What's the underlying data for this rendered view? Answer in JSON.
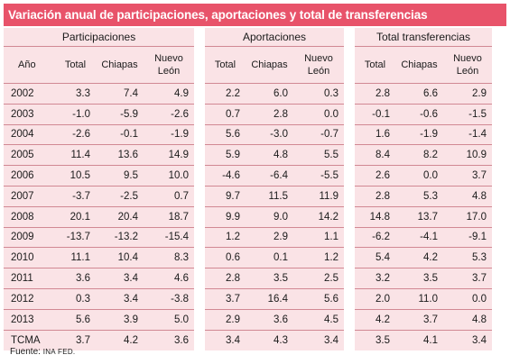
{
  "title": "Variación anual de participaciones, aportaciones y total de transferencias",
  "groups": [
    "Participaciones",
    "Aportaciones",
    "Total transferencias"
  ],
  "columns": {
    "year": "Año",
    "total": "Total",
    "chiapas": "Chiapas",
    "nuevo_leon": "Nuevo León"
  },
  "rows": [
    {
      "label": "2002",
      "values": [
        "3.3",
        "7.4",
        "4.9",
        "2.2",
        "6.0",
        "0.3",
        "2.8",
        "6.6",
        "2.9"
      ]
    },
    {
      "label": "2003",
      "values": [
        "-1.0",
        "-5.9",
        "-2.6",
        "0.7",
        "2.8",
        "0.0",
        "-0.1",
        "-0.6",
        "-1.5"
      ]
    },
    {
      "label": "2004",
      "values": [
        "-2.6",
        "-0.1",
        "-1.9",
        "5.6",
        "-3.0",
        "-0.7",
        "1.6",
        "-1.9",
        "-1.4"
      ]
    },
    {
      "label": "2005",
      "values": [
        "11.4",
        "13.6",
        "14.9",
        "5.9",
        "4.8",
        "5.5",
        "8.4",
        "8.2",
        "10.9"
      ]
    },
    {
      "label": "2006",
      "values": [
        "10.5",
        "9.5",
        "10.0",
        "-4.6",
        "-6.4",
        "-5.5",
        "2.6",
        "0.0",
        "3.7"
      ]
    },
    {
      "label": "2007",
      "values": [
        "-3.7",
        "-2.5",
        "0.7",
        "9.7",
        "11.5",
        "11.9",
        "2.8",
        "5.3",
        "4.8"
      ]
    },
    {
      "label": "2008",
      "values": [
        "20.1",
        "20.4",
        "18.7",
        "9.9",
        "9.0",
        "14.2",
        "14.8",
        "13.7",
        "17.0"
      ]
    },
    {
      "label": "2009",
      "values": [
        "-13.7",
        "-13.2",
        "-15.4",
        "1.2",
        "2.9",
        "1.1",
        "-6.2",
        "-4.1",
        "-9.1"
      ]
    },
    {
      "label": "2010",
      "values": [
        "11.1",
        "10.4",
        "8.3",
        "0.6",
        "0.1",
        "1.2",
        "5.4",
        "4.2",
        "5.3"
      ]
    },
    {
      "label": "2011",
      "values": [
        "3.6",
        "3.4",
        "4.6",
        "2.8",
        "3.5",
        "2.5",
        "3.2",
        "3.5",
        "3.7"
      ]
    },
    {
      "label": "2012",
      "values": [
        "0.3",
        "3.4",
        "-3.8",
        "3.7",
        "16.4",
        "5.6",
        "2.0",
        "11.0",
        "0.0"
      ]
    },
    {
      "label": "2013",
      "values": [
        "5.6",
        "3.9",
        "5.0",
        "2.9",
        "3.6",
        "4.5",
        "4.2",
        "3.7",
        "4.8"
      ]
    },
    {
      "label": "TCMA",
      "values": [
        "3.7",
        "4.2",
        "3.6",
        "3.4",
        "4.3",
        "3.4",
        "3.5",
        "4.1",
        "3.4"
      ]
    }
  ],
  "source": {
    "prefix": "Fuente:",
    "text": "INA FED."
  },
  "colors": {
    "title_bg": "#e8536a",
    "band_bg": "#fae3e6",
    "rule": "#d18893"
  }
}
